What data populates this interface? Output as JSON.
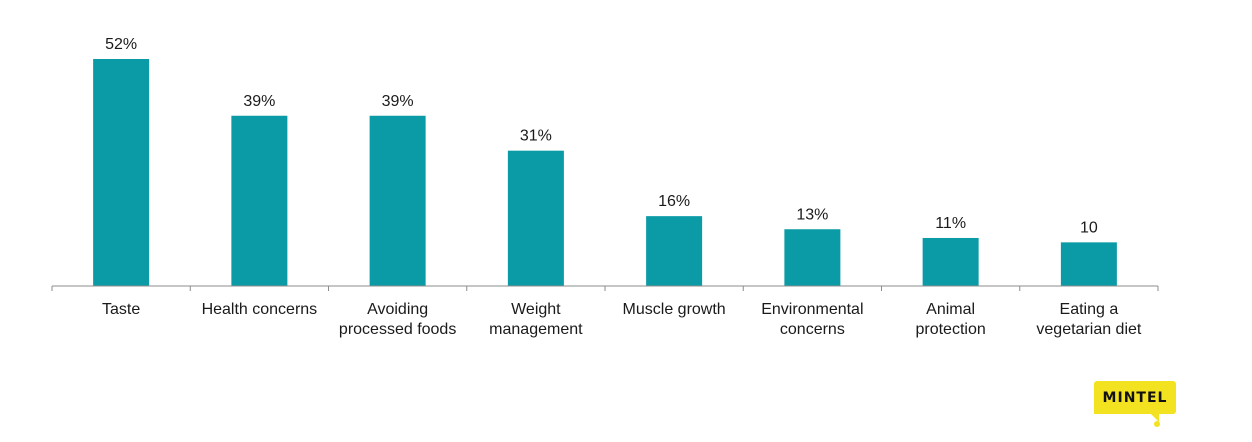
{
  "chart_data": {
    "type": "bar",
    "categories": [
      "Taste",
      "Health concerns",
      "Avoiding processed foods",
      "Weight management",
      "Muscle growth",
      "Environmental concerns",
      "Animal protection",
      "Eating a vegetarian diet"
    ],
    "category_lines": [
      [
        "Taste"
      ],
      [
        "Health concerns"
      ],
      [
        "Avoiding",
        "processed foods"
      ],
      [
        "Weight",
        "management"
      ],
      [
        "Muscle growth"
      ],
      [
        "Environmental",
        "concerns"
      ],
      [
        "Animal",
        "protection"
      ],
      [
        "Eating a",
        "vegetarian diet"
      ]
    ],
    "values": [
      52,
      39,
      39,
      31,
      16,
      13,
      11,
      10
    ],
    "value_labels": [
      "52%",
      "39%",
      "39%",
      "31%",
      "16%",
      "13%",
      "11%",
      "10"
    ],
    "ylim": [
      0,
      52
    ],
    "grid": false,
    "bar_color": "#0a9ba6",
    "axis_color": "#8c8c8c"
  },
  "logo": {
    "text": "MINTEL",
    "color": "#f2e21f"
  }
}
